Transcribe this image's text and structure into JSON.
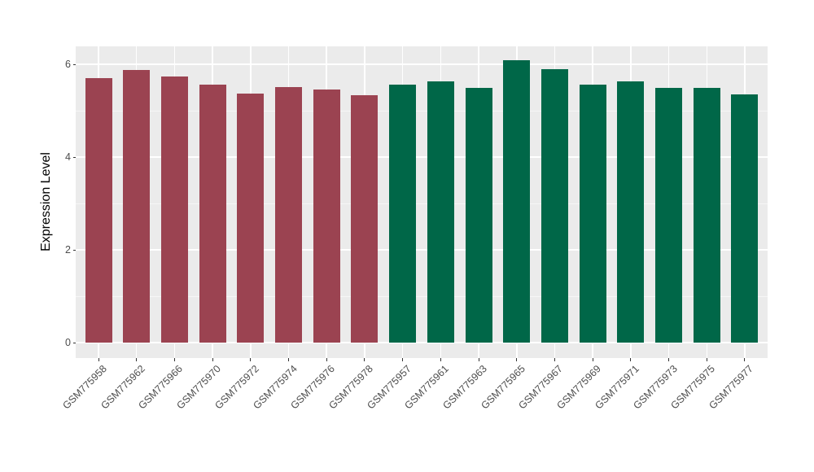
{
  "chart_data": {
    "type": "bar",
    "title": "",
    "xlabel": "",
    "ylabel": "Expression Level",
    "ylim": [
      0,
      6.4
    ],
    "yticks": [
      0,
      2,
      4,
      6
    ],
    "ytick_labels": [
      "0",
      "2",
      "4",
      "6"
    ],
    "yminor_ticks": [
      1,
      3,
      5
    ],
    "grid": "white major+minor horizontal lines and vertical category lines on gray panel",
    "legend_position": "none",
    "panel_background": "#EBEBEB",
    "gridline_color": "#FFFFFF",
    "axis_text_color": "#4D4D4D",
    "palette": {
      "maroon": "#9B4351",
      "green": "#006748"
    },
    "categories": [
      "GSM775958",
      "GSM775962",
      "GSM775966",
      "GSM775970",
      "GSM775972",
      "GSM775974",
      "GSM775976",
      "GSM775978",
      "GSM775957",
      "GSM775961",
      "GSM775963",
      "GSM775965",
      "GSM775967",
      "GSM775969",
      "GSM775971",
      "GSM775973",
      "GSM775975",
      "GSM775977"
    ],
    "values": [
      5.7,
      5.88,
      5.74,
      5.57,
      5.37,
      5.51,
      5.46,
      5.33,
      5.56,
      5.64,
      5.5,
      6.09,
      5.89,
      5.57,
      5.63,
      5.49,
      5.5,
      5.35
    ],
    "bar_colors": [
      "#9B4351",
      "#9B4351",
      "#9B4351",
      "#9B4351",
      "#9B4351",
      "#9B4351",
      "#9B4351",
      "#9B4351",
      "#006748",
      "#006748",
      "#006748",
      "#006748",
      "#006748",
      "#006748",
      "#006748",
      "#006748",
      "#006748",
      "#006748"
    ]
  }
}
